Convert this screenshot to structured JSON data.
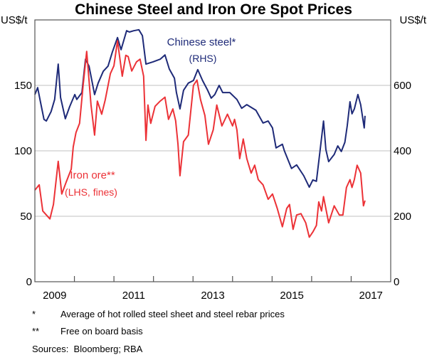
{
  "chart_data": {
    "type": "line",
    "title": "Chinese Steel and Iron Ore Spot Prices",
    "ylabel_left": "US$/t",
    "ylabel_right": "US$/t",
    "ylim_left": [
      0,
      200
    ],
    "ylim_right": [
      0,
      800
    ],
    "yticks_left": [
      0,
      50,
      100,
      150
    ],
    "yticks_right": [
      0,
      200,
      400,
      600
    ],
    "xlim": [
      2009,
      2018
    ],
    "xtick_labels": [
      "2009",
      "2011",
      "2013",
      "2015",
      "2017"
    ],
    "grid": true,
    "colors": {
      "steel": "#1e2a78",
      "iron": "#ec3237",
      "grid": "#c0c0c0"
    },
    "series": [
      {
        "name": "Chinese steel*",
        "sublabel": "(RHS)",
        "axis": "right",
        "x": [
          2009.0,
          2009.07,
          2009.14,
          2009.23,
          2009.29,
          2009.41,
          2009.5,
          2009.59,
          2009.65,
          2009.77,
          2009.88,
          2010.01,
          2010.06,
          2010.19,
          2010.28,
          2010.37,
          2010.51,
          2010.6,
          2010.73,
          2010.85,
          2010.96,
          2011.09,
          2011.18,
          2011.32,
          2011.39,
          2011.5,
          2011.63,
          2011.72,
          2011.81,
          2011.99,
          2012.17,
          2012.29,
          2012.4,
          2012.53,
          2012.58,
          2012.67,
          2012.76,
          2012.88,
          2013.01,
          2013.12,
          2013.24,
          2013.37,
          2013.46,
          2013.55,
          2013.66,
          2013.75,
          2013.93,
          2014.11,
          2014.23,
          2014.36,
          2014.59,
          2014.77,
          2014.9,
          2015.01,
          2015.1,
          2015.26,
          2015.31,
          2015.49,
          2015.62,
          2015.8,
          2015.94,
          2016.03,
          2016.12,
          2016.21,
          2016.3,
          2016.36,
          2016.43,
          2016.57,
          2016.66,
          2016.75,
          2016.84,
          2016.9,
          2016.97,
          2017.02,
          2017.08,
          2017.17,
          2017.24,
          2017.33,
          2017.35
        ],
        "y": [
          572,
          593,
          550,
          496,
          491,
          520,
          557,
          665,
          563,
          498,
          535,
          572,
          557,
          578,
          680,
          659,
          572,
          607,
          643,
          659,
          702,
          746,
          709,
          767,
          763,
          767,
          770,
          752,
          665,
          672,
          680,
          693,
          650,
          622,
          578,
          528,
          585,
          607,
          615,
          648,
          615,
          585,
          561,
          572,
          600,
          578,
          578,
          557,
          530,
          541,
          524,
          485,
          491,
          470,
          409,
          420,
          400,
          346,
          357,
          324,
          289,
          311,
          307,
          398,
          491,
          404,
          367,
          389,
          415,
          398,
          426,
          476,
          550,
          513,
          528,
          572,
          541,
          470,
          507
        ]
      },
      {
        "name": "Iron ore**",
        "sublabel": "(LHS, fines)",
        "axis": "left",
        "x": [
          2009.0,
          2009.11,
          2009.2,
          2009.38,
          2009.47,
          2009.59,
          2009.68,
          2009.79,
          2009.92,
          2009.97,
          2010.04,
          2010.13,
          2010.22,
          2010.31,
          2010.42,
          2010.51,
          2010.58,
          2010.69,
          2010.78,
          2010.91,
          2011.0,
          2011.09,
          2011.21,
          2011.3,
          2011.36,
          2011.45,
          2011.57,
          2011.66,
          2011.75,
          2011.81,
          2011.86,
          2011.93,
          2012.04,
          2012.17,
          2012.29,
          2012.38,
          2012.49,
          2012.56,
          2012.62,
          2012.67,
          2012.76,
          2012.88,
          2013.01,
          2013.1,
          2013.19,
          2013.3,
          2013.39,
          2013.51,
          2013.6,
          2013.73,
          2013.87,
          2014.0,
          2014.05,
          2014.11,
          2014.18,
          2014.27,
          2014.36,
          2014.47,
          2014.56,
          2014.65,
          2014.77,
          2014.9,
          2015.01,
          2015.13,
          2015.26,
          2015.37,
          2015.44,
          2015.53,
          2015.62,
          2015.73,
          2015.85,
          2015.94,
          2016.03,
          2016.12,
          2016.18,
          2016.25,
          2016.3,
          2016.43,
          2016.57,
          2016.7,
          2016.79,
          2016.88,
          2016.97,
          2017.02,
          2017.08,
          2017.15,
          2017.24,
          2017.31,
          2017.35
        ],
        "y": [
          70,
          74,
          54,
          48,
          59,
          92,
          67,
          76,
          86,
          103,
          114,
          121,
          150,
          176,
          135,
          112,
          138,
          128,
          139,
          159,
          165,
          184,
          157,
          173,
          172,
          161,
          168,
          170,
          157,
          108,
          135,
          121,
          134,
          138,
          141,
          124,
          132,
          123,
          105,
          81,
          107,
          112,
          150,
          154,
          139,
          127,
          105,
          116,
          135,
          119,
          128,
          119,
          124,
          116,
          94,
          109,
          94,
          83,
          89,
          78,
          74,
          63,
          67,
          56,
          42,
          56,
          59,
          40,
          51,
          52,
          45,
          34,
          38,
          43,
          61,
          54,
          65,
          45,
          58,
          51,
          51,
          72,
          78,
          72,
          78,
          89,
          83,
          58,
          62
        ]
      }
    ],
    "footnotes": [
      {
        "mark": "*",
        "text": "Average of hot rolled steel sheet and steel rebar prices"
      },
      {
        "mark": "**",
        "text": "Free on board basis"
      }
    ],
    "sources": "Sources:  Bloomberg; RBA"
  }
}
